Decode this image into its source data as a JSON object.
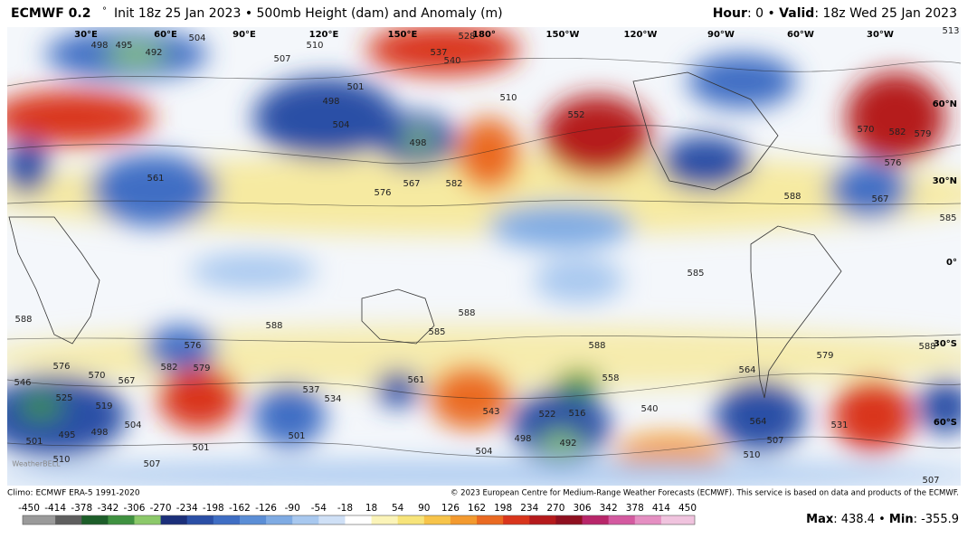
{
  "header": {
    "model": "ECMWF 0.2",
    "degree": "°",
    "description": "Init 18z 25 Jan 2023 • 500mb Height (dam) and Anomaly (m)",
    "hour_label": "Hour",
    "hour_value": ": 0 • ",
    "valid_label": "Valid",
    "valid_value": ": 18z Wed 25 Jan 2023"
  },
  "map": {
    "longitude_labels": [
      "30°E",
      "60°E",
      "90°E",
      "120°E",
      "150°E",
      "180°",
      "150°W",
      "120°W",
      "90°W",
      "60°W",
      "30°W"
    ],
    "latitude_labels": [
      "60°N",
      "30°N",
      "0°",
      "30°S",
      "60°S"
    ],
    "contour_labels": [
      "498",
      "495",
      "492",
      "504",
      "507",
      "510",
      "537",
      "540",
      "528",
      "510",
      "501",
      "498",
      "504",
      "498",
      "561",
      "576",
      "567",
      "582",
      "552",
      "570",
      "582",
      "579",
      "576",
      "567",
      "588",
      "588",
      "588",
      "585",
      "588",
      "588",
      "576",
      "579",
      "582",
      "576",
      "570",
      "567",
      "546",
      "525",
      "519",
      "504",
      "498",
      "495",
      "501",
      "501",
      "501",
      "507",
      "510",
      "537",
      "534",
      "561",
      "543",
      "522",
      "516",
      "492",
      "498",
      "504",
      "558",
      "540",
      "564",
      "564",
      "507",
      "510",
      "579",
      "588",
      "531",
      "507",
      "585",
      "585",
      "513"
    ],
    "watermark": "WeatherBELL"
  },
  "footer": {
    "climo": "Climo: ECMWF ERA-5 1991-2020",
    "copyright": "© 2023 European Centre for Medium-Range Weather Forecasts (ECMWF). This service is based on data and products of the ECMWF.",
    "colorbar": {
      "ticks": [
        "-450",
        "-414",
        "-378",
        "-342",
        "-306",
        "-270",
        "-234",
        "-198",
        "-162",
        "-126",
        "-90",
        "-54",
        "-18",
        "18",
        "54",
        "90",
        "126",
        "162",
        "198",
        "234",
        "270",
        "306",
        "342",
        "378",
        "414",
        "450"
      ],
      "colors": [
        "#9a9a9a",
        "#5f5f5f",
        "#1d5e2a",
        "#3f9140",
        "#8cc96a",
        "#1b2f7a",
        "#2b4fa6",
        "#3f6ec4",
        "#5b8ed6",
        "#7fabe3",
        "#a8c8ef",
        "#cfe0f6",
        "#ffffff",
        "#fbf4b8",
        "#f7e47a",
        "#f7c44a",
        "#f39a2f",
        "#ea6a22",
        "#d9351c",
        "#b51a1c",
        "#8f1020",
        "#b8266a",
        "#d45aa0",
        "#e58fc2",
        "#f0c3de"
      ]
    },
    "max_label": "Max",
    "max_value": ": 438.4 • ",
    "min_label": "Min",
    "min_value": ": -355.9"
  }
}
